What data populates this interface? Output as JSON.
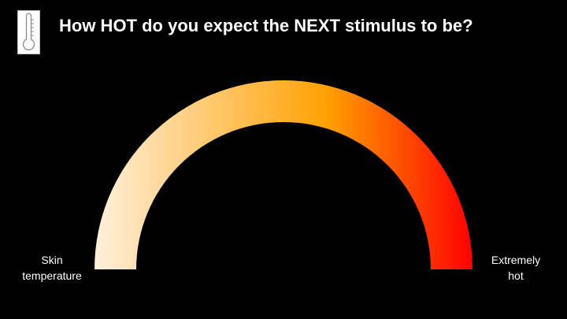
{
  "slide": {
    "background": "#000000",
    "question": "How HOT do you expect the NEXT stimulus to be?",
    "icon": "thermometer-icon"
  },
  "scale": {
    "gradient": [
      "#fff0dc",
      "#ffa000",
      "#ff0000"
    ],
    "left_label": [
      "Skin",
      "temperature"
    ],
    "right_label": [
      "Extremely",
      "hot"
    ]
  }
}
